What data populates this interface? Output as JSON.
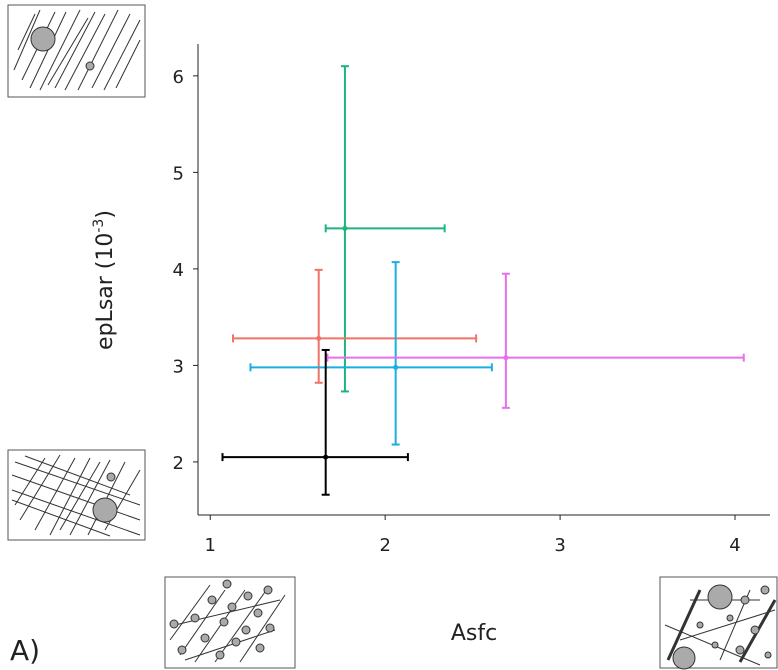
{
  "chart_data": {
    "type": "errorbar-scatter",
    "x_label": "Asfc",
    "y_label": {
      "text": "epLsar (10",
      "exponent": "-3",
      "close": ")"
    },
    "panel_label": "A)",
    "xlim": [
      0.93,
      4.2
    ],
    "xticks": [
      1,
      2,
      3,
      4
    ],
    "ylim": [
      1.45,
      6.33
    ],
    "yticks": [
      2,
      3,
      4,
      5,
      6
    ],
    "points": [
      {
        "color": "#1db57c",
        "x": 1.77,
        "y": 4.42,
        "x_range": [
          1.66,
          2.34
        ],
        "y_range": [
          2.73,
          6.1
        ]
      },
      {
        "color": "#f07268",
        "x": 1.62,
        "y": 3.28,
        "x_range": [
          1.13,
          2.52
        ],
        "y_range": [
          2.82,
          3.99
        ]
      },
      {
        "color": "#1aaee0",
        "x": 2.06,
        "y": 2.98,
        "x_range": [
          1.23,
          2.61
        ],
        "y_range": [
          2.18,
          4.07
        ]
      },
      {
        "color": "#e76fef",
        "x": 2.69,
        "y": 3.08,
        "x_range": [
          1.67,
          4.05
        ],
        "y_range": [
          2.56,
          3.95
        ]
      },
      {
        "color": "#000000",
        "x": 1.66,
        "y": 2.05,
        "x_range": [
          1.07,
          2.13
        ],
        "y_range": [
          1.66,
          3.16
        ]
      }
    ]
  }
}
